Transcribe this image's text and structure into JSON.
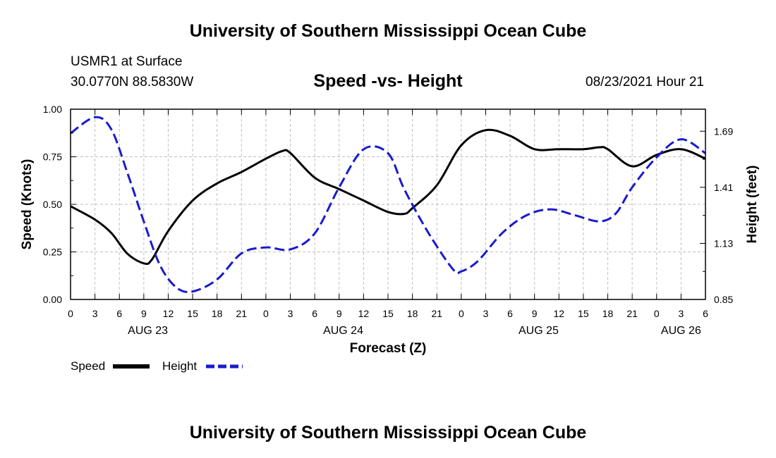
{
  "header": {
    "title": "University of Southern Mississippi Ocean Cube",
    "station": "USMR1 at Surface",
    "coords": "30.0770N  88.5830W",
    "datetime": "08/23/2021 Hour 21"
  },
  "footer": {
    "title": "University of Southern Mississippi Ocean Cube"
  },
  "colors": {
    "speed": "#000000",
    "height": "#1a1acc",
    "grid": "#bfbfbf"
  },
  "chart_data": {
    "type": "line",
    "title": "Speed -vs- Height",
    "xlabel": "Forecast (Z)",
    "ylabel": "Speed (Knots)",
    "y2label": "Height (feet)",
    "xlim": [
      0,
      78
    ],
    "ylim": [
      0,
      1
    ],
    "y2lim": [
      0.85,
      1.8
    ],
    "yticks": [
      "0.00",
      "0.25",
      "0.50",
      "0.75",
      "1.00"
    ],
    "y2ticks": [
      "0.85",
      "1.13",
      "1.41",
      "1.69"
    ],
    "xtick_labels": [
      "0",
      "3",
      "6",
      "9",
      "12",
      "15",
      "18",
      "21",
      "0",
      "3",
      "6",
      "9",
      "12",
      "15",
      "18",
      "21",
      "0",
      "3",
      "6",
      "9",
      "12",
      "15",
      "18",
      "21",
      "0",
      "3",
      "6"
    ],
    "day_labels": [
      {
        "label": "AUG 23",
        "hour": 9.5
      },
      {
        "label": "AUG 24",
        "hour": 33.5
      },
      {
        "label": "AUG 25",
        "hour": 57.5
      },
      {
        "label": "AUG 26",
        "hour": 75
      }
    ],
    "legend": [
      "Speed",
      "Height"
    ],
    "grid": true,
    "series": [
      {
        "name": "Speed",
        "axis": "left",
        "style": "solid",
        "x": [
          0,
          3,
          5,
          7,
          9,
          10,
          12,
          15,
          18,
          21,
          24,
          26,
          27,
          30,
          33,
          36,
          39,
          41,
          42,
          45,
          48,
          51,
          54,
          57,
          60,
          63,
          65,
          66,
          69,
          72,
          75,
          78
        ],
        "values": [
          0.49,
          0.42,
          0.35,
          0.24,
          0.19,
          0.21,
          0.36,
          0.52,
          0.61,
          0.67,
          0.74,
          0.78,
          0.77,
          0.64,
          0.58,
          0.52,
          0.46,
          0.45,
          0.48,
          0.6,
          0.81,
          0.89,
          0.86,
          0.79,
          0.79,
          0.79,
          0.8,
          0.79,
          0.7,
          0.76,
          0.79,
          0.74
        ]
      },
      {
        "name": "Height",
        "axis": "right",
        "style": "dashed",
        "x": [
          0,
          3,
          5,
          7,
          9,
          11,
          13,
          15,
          18,
          21,
          24,
          27,
          30,
          33,
          36,
          39,
          41,
          44,
          47,
          48,
          50,
          53,
          56,
          59,
          62,
          65,
          67,
          69,
          72,
          75,
          78
        ],
        "values": [
          1.68,
          1.76,
          1.7,
          1.48,
          1.24,
          1.02,
          0.91,
          0.89,
          0.95,
          1.08,
          1.11,
          1.1,
          1.18,
          1.41,
          1.6,
          1.58,
          1.4,
          1.18,
          1.0,
          0.99,
          1.04,
          1.18,
          1.27,
          1.3,
          1.27,
          1.24,
          1.28,
          1.41,
          1.56,
          1.65,
          1.58
        ]
      }
    ]
  }
}
